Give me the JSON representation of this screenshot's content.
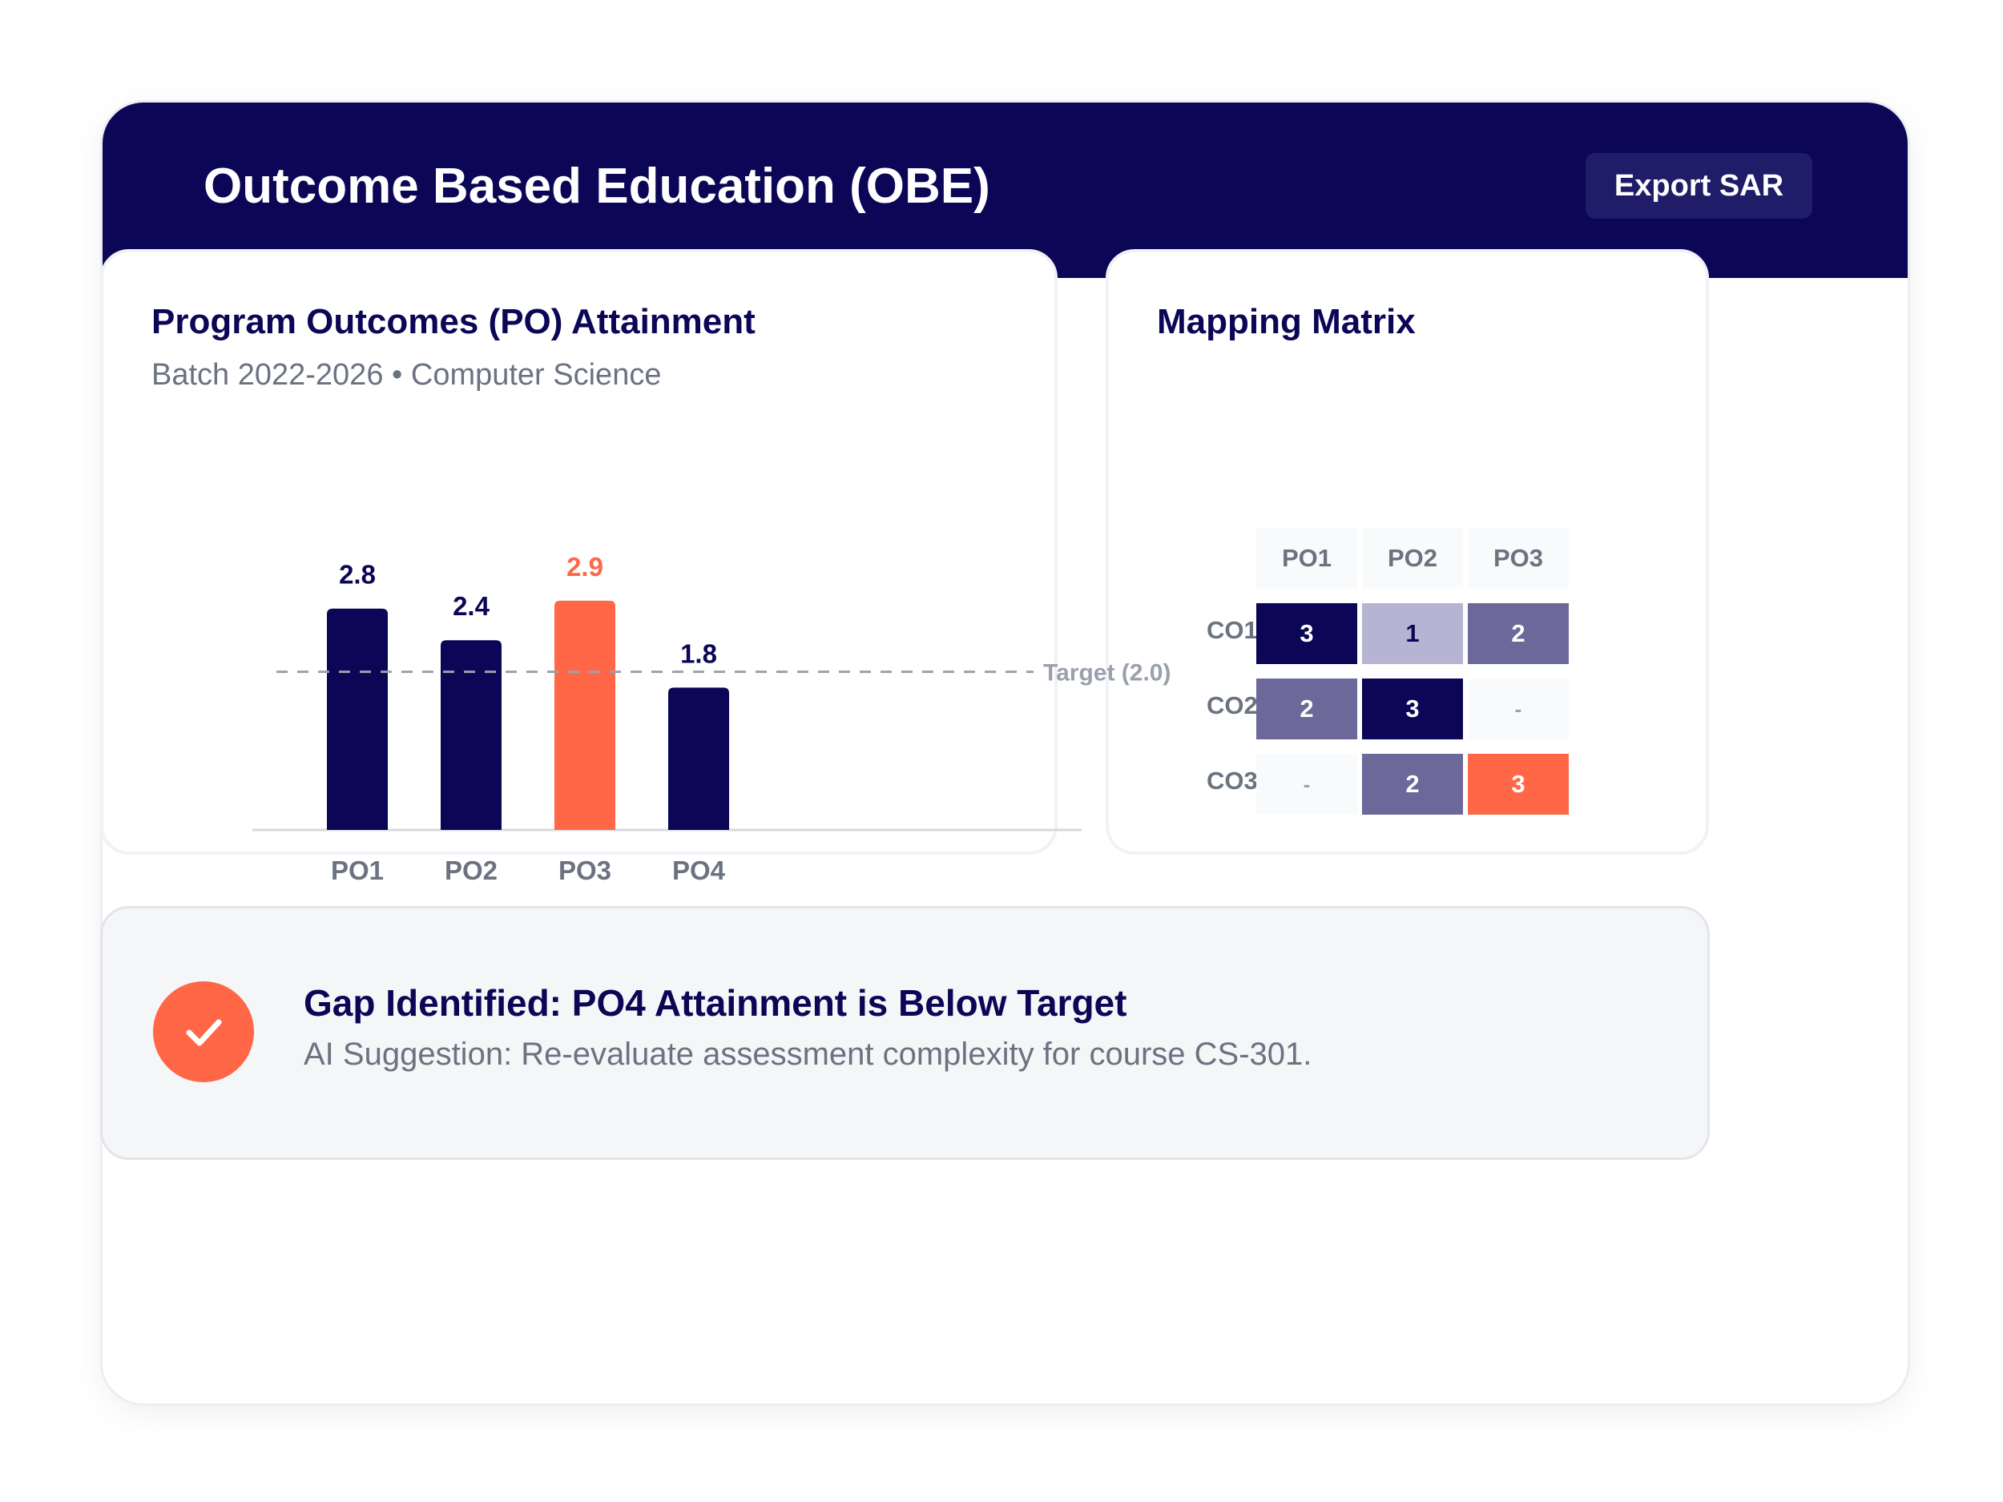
{
  "header": {
    "title": "Outcome Based Education (OBE)",
    "export_label": "Export SAR"
  },
  "colors": {
    "navy": "#0b0656",
    "accent": "#ff6746",
    "mid": "#6c6899",
    "light": "#b7b3d2",
    "empty": "#f9fafb"
  },
  "po_panel": {
    "title": "Program Outcomes (PO) Attainment",
    "subtitle": "Batch 2022-2026 • Computer Science"
  },
  "chart_data": {
    "type": "bar",
    "categories": [
      "PO1",
      "PO2",
      "PO3",
      "PO4"
    ],
    "values": [
      2.8,
      2.4,
      2.9,
      1.8
    ],
    "value_labels": [
      "2.8",
      "2.4",
      "2.9",
      "1.8"
    ],
    "highlight_index": 2,
    "ylim": [
      0,
      3.0
    ],
    "target": {
      "value": 2.0,
      "label": "Target (2.0)"
    },
    "grid": false,
    "legend": "none"
  },
  "matrix": {
    "title": "Mapping Matrix",
    "columns": [
      "PO1",
      "PO2",
      "PO3"
    ],
    "rows": [
      {
        "label": "CO1",
        "cells": [
          "3",
          "1",
          "2"
        ],
        "styles": [
          "navy",
          "light",
          "mid"
        ]
      },
      {
        "label": "CO2",
        "cells": [
          "2",
          "3",
          "-"
        ],
        "styles": [
          "mid",
          "navy",
          "empty"
        ]
      },
      {
        "label": "CO3",
        "cells": [
          "-",
          "2",
          "3"
        ],
        "styles": [
          "empty",
          "mid",
          "accent"
        ]
      }
    ]
  },
  "gap": {
    "icon": "check-icon",
    "title": "Gap Identified: PO4 Attainment is Below Target",
    "suggestion": "AI Suggestion: Re-evaluate assessment complexity for course CS-301."
  }
}
